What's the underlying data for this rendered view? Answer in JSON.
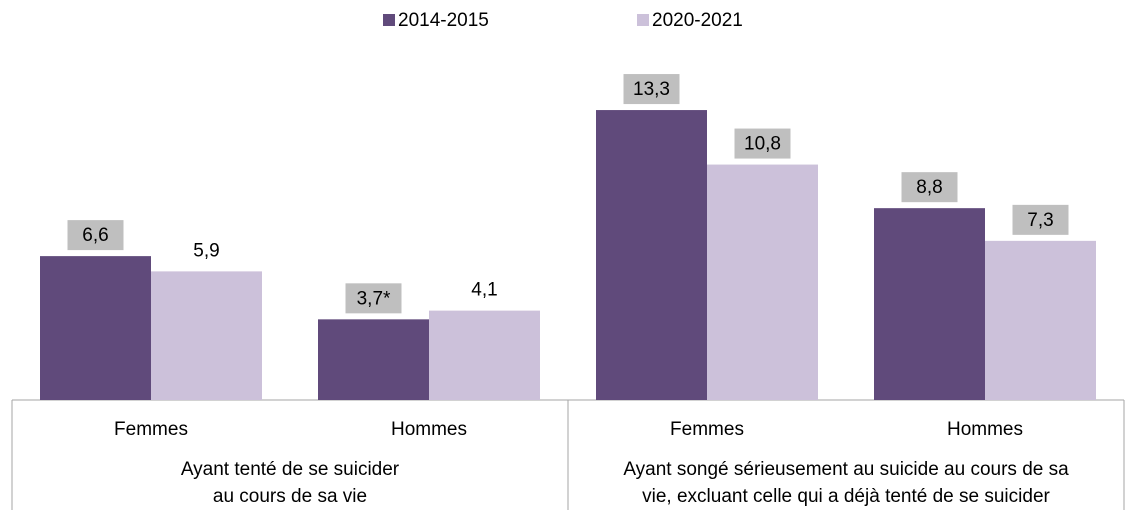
{
  "chart_data": {
    "type": "bar",
    "categories": [
      "Femmes",
      "Hommes",
      "Femmes",
      "Hommes"
    ],
    "groups": [
      {
        "lines": [
          "Ayant tenté de se suicider",
          "au cours de sa vie"
        ],
        "span": 2
      },
      {
        "lines": [
          "Ayant songé sérieusement au suicide au cours de sa",
          "vie, excluant celle qui a déjà tenté de se suicider"
        ],
        "span": 2
      }
    ],
    "series": [
      {
        "name": "2014-2015",
        "color": "#604a7b",
        "values": [
          6.6,
          3.7,
          13.3,
          8.8
        ],
        "value_labels": [
          "6,6",
          "3,7*",
          "13,3",
          "8,8"
        ],
        "label_colors": [
          "#bfbfbf",
          "#bfbfbf",
          "#bfbfbf",
          "#bfbfbf"
        ]
      },
      {
        "name": "2020-2021",
        "color": "#ccc1da",
        "values": [
          5.9,
          4.1,
          10.8,
          7.3
        ],
        "value_labels": [
          "5,9",
          "4,1",
          "10,8",
          "7,3"
        ],
        "label_colors": [
          null,
          null,
          "#bfbfbf",
          "#bfbfbf"
        ]
      }
    ],
    "ylim": [
      0,
      14
    ]
  }
}
